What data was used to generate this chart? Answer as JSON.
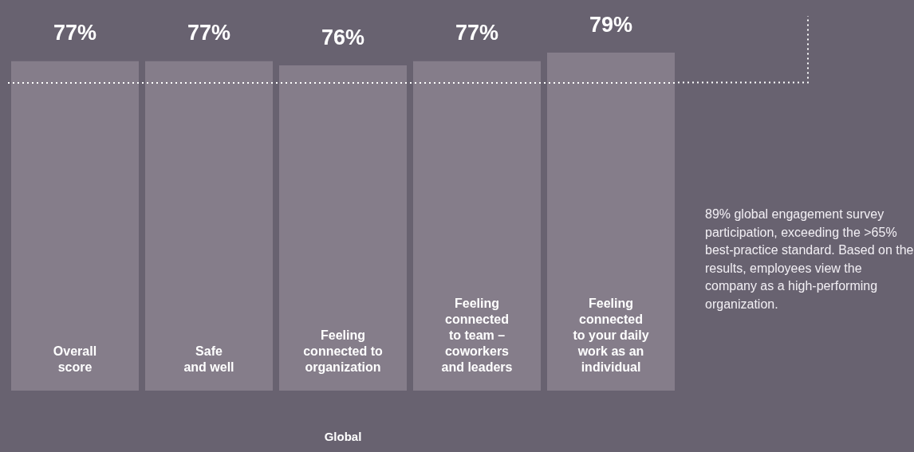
{
  "chart_data": {
    "type": "bar",
    "categories": [
      "Overall\nscore",
      "Safe\nand well",
      "Feeling\nconnected to\norganization",
      "Feeling\nconnected\nto team –\ncoworkers\nand leaders",
      "Feeling\nconnected\nto your daily\nwork as an\nindividual"
    ],
    "values": [
      77,
      77,
      76,
      77,
      79
    ],
    "color": "#857d8a",
    "value_labels": [
      "77%",
      "77%",
      "76%",
      "77%",
      "79%"
    ],
    "xlabel": "Global",
    "ref_lines": [
      {
        "axis": "y",
        "value": 72,
        "color": "#ffffff",
        "line_style": "dotted"
      }
    ],
    "annotations": [
      "89% global engagement survey participation, exceeding the >65% best-practice standard. Based on the results, employees view the company as a high-performing organization."
    ]
  }
}
